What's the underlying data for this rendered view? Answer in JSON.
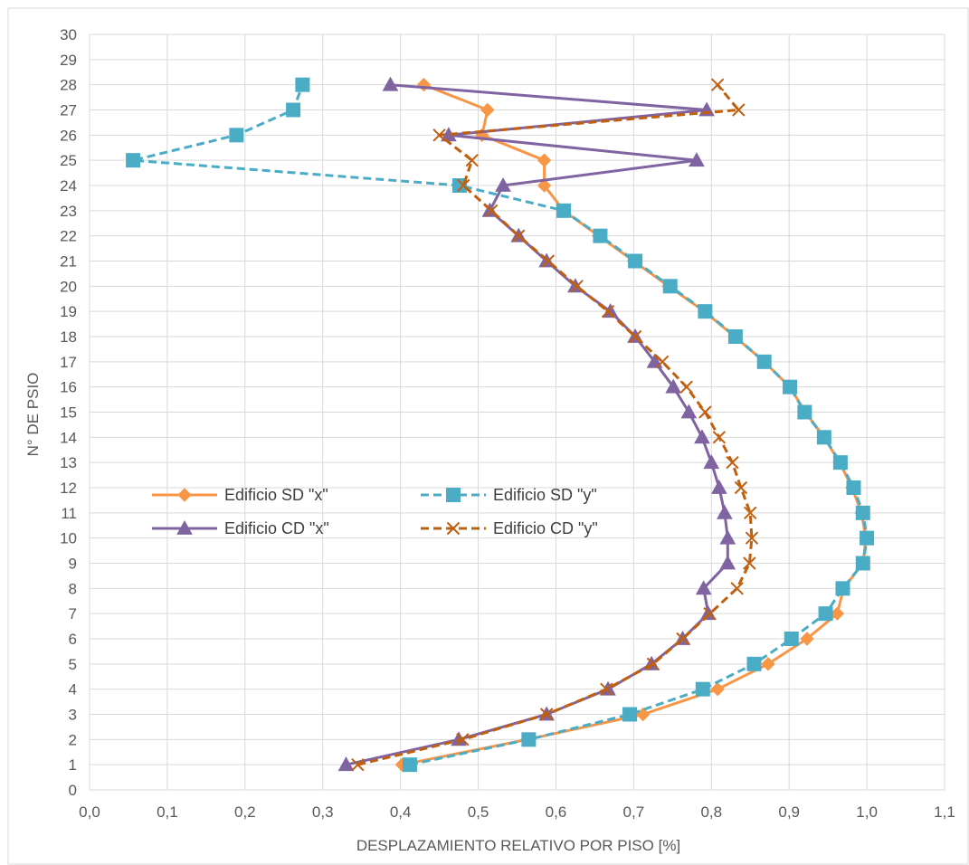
{
  "chart_data": {
    "type": "line",
    "xlabel": "DESPLAZAMIENTO RELATIVO POR PISO [%]",
    "ylabel": "N° DE PSIO",
    "xlim": [
      0,
      1.1
    ],
    "ylim": [
      0,
      30
    ],
    "x_ticks": [
      "0,0",
      "0,1",
      "0,2",
      "0,3",
      "0,4",
      "0,5",
      "0,6",
      "0,7",
      "0,8",
      "0,9",
      "1,0",
      "1,1"
    ],
    "y_ticks": [
      "0",
      "1",
      "2",
      "3",
      "4",
      "5",
      "6",
      "7",
      "8",
      "9",
      "10",
      "11",
      "12",
      "13",
      "14",
      "15",
      "16",
      "17",
      "18",
      "19",
      "20",
      "21",
      "22",
      "23",
      "24",
      "25",
      "26",
      "27",
      "28",
      "29",
      "30"
    ],
    "grid": true,
    "legend_position": "middle-left",
    "series": [
      {
        "name": "Edificio SD \"x\"",
        "color": "#F79646",
        "line": "solid",
        "marker": "diamond",
        "x": [
          0.402,
          0.563,
          0.712,
          0.808,
          0.873,
          0.923,
          0.962,
          0.97,
          0.995,
          0.999,
          0.993,
          0.981,
          0.965,
          0.945,
          0.921,
          0.901,
          0.868,
          0.83,
          0.791,
          0.745,
          0.7,
          0.655,
          0.61,
          0.585,
          0.585,
          0.505,
          0.512,
          0.43
        ],
        "y": [
          1,
          2,
          3,
          4,
          5,
          6,
          7,
          8,
          9,
          10,
          11,
          12,
          13,
          14,
          15,
          16,
          17,
          18,
          19,
          20,
          21,
          22,
          23,
          24,
          25,
          26,
          27,
          28
        ]
      },
      {
        "name": "Edificio SD \"y\"",
        "color": "#4BACC6",
        "line": "dashed",
        "marker": "square",
        "x": [
          0.412,
          0.565,
          0.695,
          0.789,
          0.855,
          0.903,
          0.947,
          0.969,
          0.995,
          1.0,
          0.995,
          0.983,
          0.966,
          0.945,
          0.92,
          0.901,
          0.868,
          0.831,
          0.792,
          0.747,
          0.702,
          0.657,
          0.61,
          0.476,
          0.056,
          0.189,
          0.262,
          0.274
        ],
        "y": [
          1,
          2,
          3,
          4,
          5,
          6,
          7,
          8,
          9,
          10,
          11,
          12,
          13,
          14,
          15,
          16,
          17,
          18,
          19,
          20,
          21,
          22,
          23,
          24,
          25,
          26,
          27,
          28
        ]
      },
      {
        "name": "Edificio CD \"x\"",
        "color": "#8064A2",
        "line": "solid",
        "marker": "triangle",
        "x": [
          0.33,
          0.475,
          0.588,
          0.667,
          0.723,
          0.763,
          0.796,
          0.79,
          0.821,
          0.821,
          0.817,
          0.81,
          0.8,
          0.788,
          0.771,
          0.751,
          0.727,
          0.702,
          0.67,
          0.625,
          0.588,
          0.552,
          0.515,
          0.532,
          0.781,
          0.462,
          0.794,
          0.387
        ],
        "y": [
          1,
          2,
          3,
          4,
          5,
          6,
          7,
          8,
          9,
          10,
          11,
          12,
          13,
          14,
          15,
          16,
          17,
          18,
          19,
          20,
          21,
          22,
          23,
          24,
          25,
          26,
          27,
          28
        ]
      },
      {
        "name": "Edificio CD \"y\"",
        "color": "#C0600F",
        "line": "dashed",
        "marker": "x",
        "x": [
          0.345,
          0.48,
          0.588,
          0.665,
          0.725,
          0.763,
          0.798,
          0.833,
          0.849,
          0.852,
          0.85,
          0.838,
          0.827,
          0.81,
          0.792,
          0.768,
          0.737,
          0.702,
          0.667,
          0.627,
          0.59,
          0.552,
          0.517,
          0.481,
          0.492,
          0.45,
          0.835,
          0.808
        ],
        "y": [
          1,
          2,
          3,
          4,
          5,
          6,
          7,
          8,
          9,
          10,
          11,
          12,
          13,
          14,
          15,
          16,
          17,
          18,
          19,
          20,
          21,
          22,
          23,
          24,
          25,
          26,
          27,
          28
        ]
      }
    ]
  }
}
